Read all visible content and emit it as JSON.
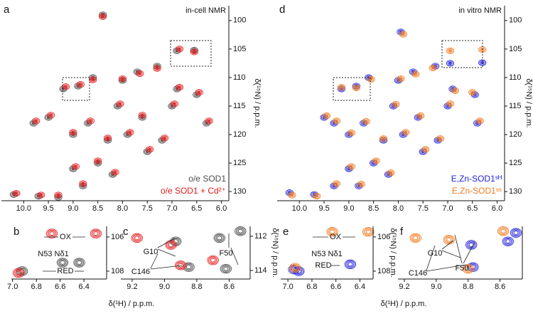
{
  "chart_data": [
    {
      "type": "scatter",
      "label": "a",
      "annotations": [
        "in-cell NMR"
      ],
      "ylabel": "δ(¹⁵N) / p.p.m.",
      "xlim": [
        10.45,
        5.85
      ],
      "xticks": [
        {
          "value": 10,
          "label": "10.0"
        },
        9.5,
        {
          "value": 9,
          "label": "9.0"
        },
        8.5,
        {
          "value": 8,
          "label": "8.0"
        },
        7.5,
        {
          "value": 7,
          "label": "7.0"
        },
        6.5,
        {
          "value": 6,
          "label": "6.0"
        }
      ],
      "ylim": [
        97.4,
        131.6
      ],
      "yticks": [
        100,
        105,
        110,
        115,
        120,
        125,
        130
      ],
      "series": [
        {
          "name": "o/e SOD1",
          "color": "#4a4a4a",
          "x": [
            10.2,
            9.7,
            9.3,
            8.4,
            6.9,
            6.55,
            9.2,
            8.9,
            8.6,
            7.7,
            7.3,
            6.9,
            6.5,
            9.5,
            9.0,
            8.7,
            8.3,
            8.1,
            7.9,
            7.6,
            8.5,
            8.2,
            9.0,
            8.8,
            7.2,
            7.5,
            9.8,
            8.0,
            7.0,
            6.3
          ],
          "values": [
            130.5,
            130.8,
            131.0,
            99.0,
            105.3,
            105.2,
            112,
            111.5,
            110,
            109,
            108,
            112,
            113,
            117,
            120,
            118,
            121,
            115,
            120,
            117,
            125,
            127,
            126,
            129,
            121,
            123,
            118,
            110.5,
            115,
            118
          ]
        },
        {
          "name": "o/e SOD1 + Cd²⁺",
          "color": "#e41a1c",
          "x": [
            10.15,
            9.65,
            9.3,
            8.4,
            6.85,
            6.55,
            9.15,
            8.85,
            8.6,
            7.65,
            7.3,
            6.85,
            6.45,
            9.45,
            9.0,
            8.65,
            8.3,
            8.05,
            7.85,
            7.6,
            8.5,
            8.15,
            8.95,
            8.8,
            7.15,
            7.45,
            9.75,
            8.0,
            6.95,
            6.25
          ],
          "values": [
            130.3,
            130.6,
            130.6,
            99.3,
            105.0,
            105.5,
            111.6,
            111.2,
            110.4,
            109.3,
            108.4,
            111.7,
            112.6,
            116.6,
            119.6,
            117.6,
            120.6,
            114.6,
            119.6,
            116.6,
            124.6,
            126.6,
            125.6,
            128.6,
            120.6,
            122.6,
            117.6,
            110.2,
            114.6,
            117.6
          ]
        }
      ]
    },
    {
      "type": "scatter",
      "label": "d",
      "annotations": [
        "in vitro NMR"
      ],
      "ylabel": "δ(¹⁵N) / p.p.m.",
      "xlim": [
        10.45,
        5.85
      ],
      "xticks": [
        {
          "value": 10,
          "label": "10.0"
        },
        9.5,
        {
          "value": 9,
          "label": "9.0"
        },
        8.5,
        {
          "value": 8,
          "label": "8.0"
        },
        7.5,
        {
          "value": 7,
          "label": "7.0"
        },
        6.5,
        {
          "value": 6,
          "label": "6.0"
        }
      ],
      "ylim": [
        97.4,
        131.6
      ],
      "yticks": [
        100,
        105,
        110,
        115,
        120,
        125,
        130
      ],
      "series": [
        {
          "name": "E,Zn-SOD1ˢᴴ",
          "color": "#1f1fd6",
          "x": [
            10.2,
            9.7,
            9.3,
            7.95,
            6.95,
            6.3,
            9.15,
            8.85,
            8.6,
            7.7,
            7.25,
            6.9,
            6.45,
            9.5,
            9.0,
            8.7,
            8.3,
            8.1,
            7.9,
            7.6,
            8.5,
            8.2,
            9.0,
            8.8,
            7.2,
            7.5,
            9.3,
            8.0,
            7.0,
            6.4
          ],
          "values": [
            130.2,
            130.5,
            129.0,
            102.0,
            107.5,
            107.4,
            112,
            111.5,
            110,
            109,
            108,
            112,
            113,
            117,
            120,
            118,
            121,
            115,
            120,
            117,
            125,
            127,
            126,
            129,
            121,
            123,
            118,
            110.5,
            115,
            118
          ]
        },
        {
          "name": "E,Zn-SOD1ˢˢ",
          "color": "#f07b20",
          "x": [
            10.15,
            9.65,
            9.25,
            7.9,
            6.95,
            6.3,
            9.15,
            8.85,
            8.55,
            7.65,
            7.3,
            6.85,
            6.5,
            9.45,
            8.95,
            8.65,
            8.3,
            8.05,
            7.85,
            7.55,
            8.45,
            8.15,
            8.95,
            8.75,
            7.15,
            7.45,
            9.25,
            7.95,
            6.95,
            6.35
          ],
          "values": [
            130.6,
            130.8,
            128.6,
            102.4,
            105.3,
            105.1,
            111.7,
            111.8,
            110.3,
            109.4,
            108.3,
            112.3,
            112.6,
            116.7,
            119.7,
            117.7,
            120.7,
            114.7,
            119.6,
            116.7,
            124.6,
            126.7,
            125.6,
            128.7,
            120.7,
            122.6,
            117.6,
            110.2,
            114.6,
            117.6
          ]
        }
      ]
    },
    {
      "type": "scatter",
      "label": "b",
      "annotations": [
        "OX",
        "N53 Nδ1",
        "RED"
      ],
      "xlabel": "δ(¹H) / p.p.m.",
      "xlim": [
        7.01,
        6.21
      ],
      "xticks": [
        {
          "value": 7,
          "label": "7.0"
        },
        6.8,
        6.6,
        6.4
      ],
      "ylim": [
        105.38,
        108.46
      ],
      "yticks": [
        106,
        108
      ],
      "series": [
        {
          "color": "#4a4a4a",
          "x": [
            6.92,
            6.58,
            6.44
          ],
          "values": [
            108.0,
            107.5,
            107.5
          ]
        },
        {
          "color": "#e41a1c",
          "x": [
            6.95,
            6.67,
            6.3
          ],
          "values": [
            108.1,
            105.8,
            105.8
          ]
        }
      ]
    },
    {
      "type": "scatter",
      "label": "c",
      "annotations": [
        "G10",
        "C146",
        "F50"
      ],
      "ylabel": "δ(¹⁵N) / p.p.m.",
      "xlim": [
        9.27,
        8.47
      ],
      "xticks": [
        9.2,
        {
          "value": 9,
          "label": "9.0"
        },
        8.8,
        8.6
      ],
      "ylim": [
        111.42,
        114.5
      ],
      "yticks": [
        112,
        114
      ],
      "series": [
        {
          "color": "#4a4a4a",
          "x": [
            8.93,
            8.85,
            8.66,
            8.53,
            8.62
          ],
          "values": [
            112.3,
            113.8,
            112.1,
            111.7,
            113.9
          ]
        },
        {
          "color": "#e41a1c",
          "x": [
            9.17,
            8.96,
            8.9,
            8.7
          ],
          "values": [
            112.1,
            112.5,
            113.7,
            113.4
          ]
        }
      ]
    },
    {
      "type": "scatter",
      "label": "e",
      "annotations": [
        "OX",
        "N53 Nδ1",
        "RED"
      ],
      "xlabel": "δ(¹H) / p.p.m.",
      "ylabel": "δ(¹⁵N) / p.p.m.",
      "xlim": [
        7.06,
        6.29
      ],
      "xticks": [
        {
          "value": 7,
          "label": "7.0"
        },
        6.8,
        6.6,
        6.4
      ],
      "ylim": [
        105.38,
        108.46
      ],
      "yticks": [
        106,
        108
      ],
      "series": [
        {
          "color": "#1f1fd6",
          "x": [
            6.95,
            6.91,
            6.48
          ],
          "values": [
            107.9,
            108.0,
            107.6
          ]
        },
        {
          "color": "#f07b20",
          "x": [
            6.94,
            6.63,
            6.33
          ],
          "values": [
            107.8,
            105.7,
            105.7
          ]
        }
      ]
    },
    {
      "type": "scatter",
      "label": "f",
      "annotations": [
        "G10",
        "C146",
        "F50"
      ],
      "xlim": [
        9.24,
        8.46
      ],
      "xticks": [
        9.2,
        {
          "value": 9,
          "label": "9.0"
        },
        8.8,
        8.6
      ],
      "ylim": [
        111.42,
        114.5
      ],
      "series": [
        {
          "color": "#1f1fd6",
          "x": [
            8.78,
            8.77,
            8.55,
            8.5
          ],
          "values": [
            112.5,
            113.8,
            112.3,
            111.8
          ]
        },
        {
          "color": "#f07b20",
          "x": [
            9.13,
            8.92,
            8.8,
            8.58
          ],
          "values": [
            112.1,
            112.2,
            113.9,
            111.7
          ]
        }
      ]
    }
  ]
}
